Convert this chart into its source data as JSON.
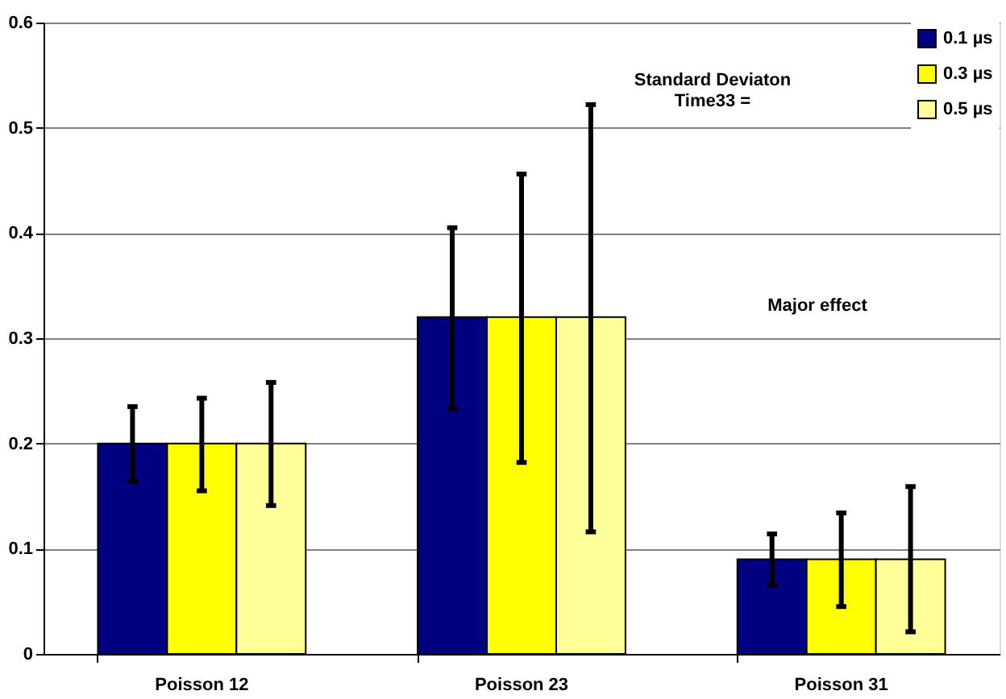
{
  "chart_data": {
    "type": "bar",
    "categories": [
      "Poisson 12",
      "Poisson 23",
      "Poisson 31"
    ],
    "series": [
      {
        "name": "0.1 µs",
        "color": "#000080",
        "values": [
          0.2,
          0.32,
          0.09
        ],
        "errors": [
          [
            0.164,
            0.235
          ],
          [
            0.233,
            0.405
          ],
          [
            0.065,
            0.114
          ]
        ]
      },
      {
        "name": "0.3 µs",
        "color": "#ffff00",
        "values": [
          0.2,
          0.32,
          0.09
        ],
        "errors": [
          [
            0.155,
            0.243
          ],
          [
            0.182,
            0.456
          ],
          [
            0.045,
            0.134
          ]
        ]
      },
      {
        "name": "0.5 µs",
        "color": "#ffff99",
        "values": [
          0.2,
          0.32,
          0.09
        ],
        "errors": [
          [
            0.141,
            0.258
          ],
          [
            0.116,
            0.522
          ],
          [
            0.021,
            0.159
          ]
        ]
      }
    ],
    "ylim": [
      0,
      0.6
    ],
    "yticks": [
      0,
      0.1,
      0.2,
      0.3,
      0.4,
      0.5,
      0.6
    ],
    "grid": "y",
    "legend": "top right",
    "annotations": [
      "Standard Deviaton\nTime33 =",
      "Major effect"
    ]
  }
}
